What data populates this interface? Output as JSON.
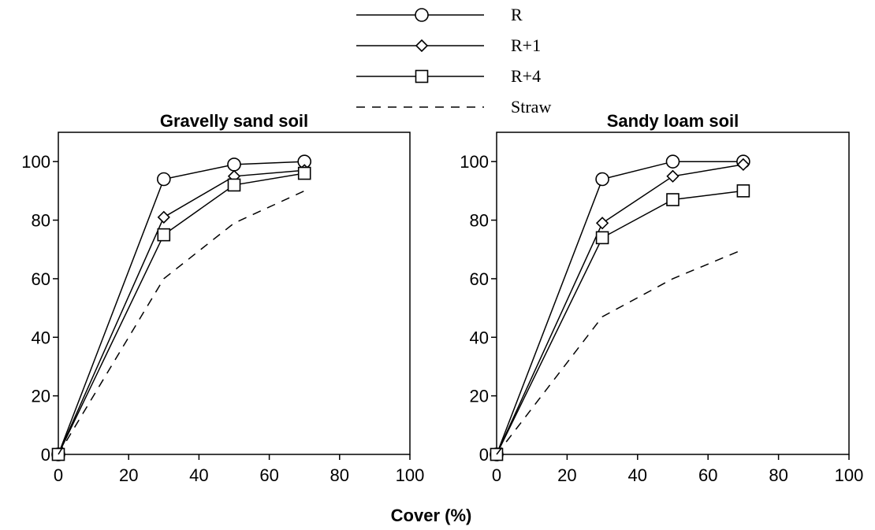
{
  "chart_data": [
    {
      "type": "line",
      "title": "Gravelly sand soil",
      "xlabel": "Cover (%)",
      "ylabel": "",
      "xlim": [
        0,
        100
      ],
      "ylim": [
        0,
        110
      ],
      "xticks": [
        "0",
        "20",
        "40",
        "60",
        "80",
        "100"
      ],
      "yticks": [
        "0",
        "20",
        "40",
        "60",
        "80",
        "100"
      ],
      "x": [
        0,
        30,
        50,
        70
      ],
      "series": [
        {
          "name": "R",
          "marker": "circle",
          "dash": "solid",
          "values": [
            0,
            94,
            99,
            100
          ]
        },
        {
          "name": "R+1",
          "marker": "diamond",
          "dash": "solid",
          "values": [
            0,
            81,
            95,
            97
          ]
        },
        {
          "name": "R+4",
          "marker": "square",
          "dash": "solid",
          "values": [
            0,
            75,
            92,
            96
          ]
        },
        {
          "name": "Straw",
          "marker": "none",
          "dash": "dashed",
          "values": [
            0,
            60,
            79,
            90
          ]
        }
      ]
    },
    {
      "type": "line",
      "title": "Sandy loam soil",
      "xlabel": "Cover (%)",
      "ylabel": "",
      "xlim": [
        0,
        100
      ],
      "ylim": [
        0,
        110
      ],
      "xticks": [
        "0",
        "20",
        "40",
        "60",
        "80",
        "100"
      ],
      "yticks": [
        "0",
        "20",
        "40",
        "60",
        "80",
        "100"
      ],
      "x": [
        0,
        30,
        50,
        70
      ],
      "series": [
        {
          "name": "R",
          "marker": "circle",
          "dash": "solid",
          "values": [
            0,
            94,
            100,
            100
          ]
        },
        {
          "name": "R+1",
          "marker": "diamond",
          "dash": "solid",
          "values": [
            0,
            79,
            95,
            99
          ]
        },
        {
          "name": "R+4",
          "marker": "square",
          "dash": "solid",
          "values": [
            0,
            74,
            87,
            90
          ]
        },
        {
          "name": "Straw",
          "marker": "none",
          "dash": "dashed",
          "values": [
            0,
            47,
            60,
            70
          ]
        }
      ]
    }
  ],
  "legend": {
    "placement": "top-center",
    "entries": [
      {
        "label": "R",
        "marker": "circle",
        "dash": "solid"
      },
      {
        "label": "R+1",
        "marker": "diamond",
        "dash": "solid"
      },
      {
        "label": "R+4",
        "marker": "square",
        "dash": "solid"
      },
      {
        "label": "Straw",
        "marker": "none",
        "dash": "dashed"
      }
    ]
  },
  "shared_xlabel": "Cover (%)"
}
